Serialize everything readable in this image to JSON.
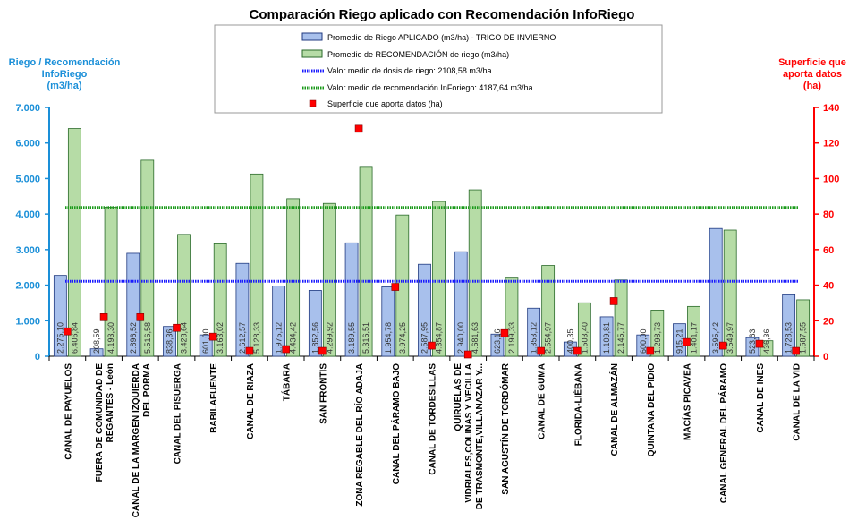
{
  "chart_data": {
    "type": "bar",
    "title": "Comparación Riego aplicado con Recomendación InfoRiego",
    "ylabel_left": [
      "Riego / Recomendación",
      "InfoRiego",
      "(m3/ha)"
    ],
    "ylabel_right": [
      "Superficie que",
      "aporta datos",
      "(ha)"
    ],
    "ylim_left": [
      0,
      7000
    ],
    "ylim_right": [
      0,
      140
    ],
    "yticks_left": [
      "0",
      "1.000",
      "2.000",
      "3.000",
      "4.000",
      "5.000",
      "6.000",
      "7.000"
    ],
    "yticks_right": [
      "0",
      "20",
      "40",
      "60",
      "80",
      "100",
      "120",
      "140"
    ],
    "categories": [
      [
        "CANAL DE PAYUELOS"
      ],
      [
        "FUERA DE COMUNIDAD DE",
        "REGANTES - León"
      ],
      [
        "CANAL DE LA MARGEN IZQUIERDA",
        "DEL PORMA"
      ],
      [
        "CANAL DEL PISUERGA"
      ],
      [
        "BABILAFUENTE"
      ],
      [
        "CANAL DE RIAZA"
      ],
      [
        "TÁBARA"
      ],
      [
        "SAN FRONTIS"
      ],
      [
        "ZONA REGABLE DEL RÍO ADAJA"
      ],
      [
        "CANAL DEL PÁRAMO BAJO"
      ],
      [
        "CANAL DE TORDESILLAS"
      ],
      [
        "QUIRUELAS DE",
        "VIDRIALES,COLINAS Y VECILLA",
        "DE TRASMONTE,VILLANAZAR Y..."
      ],
      [
        "SAN AGUSTÍN DE TORDÓMAR"
      ],
      [
        "CANAL DE GUMA"
      ],
      [
        "FLORIDA-LIÉBANA"
      ],
      [
        "CANAL DE ALMAZÁN"
      ],
      [
        "QUINTANA DEL PIDIO"
      ],
      [
        "MACÍAS PICAVEA"
      ],
      [
        "CANAL GENERAL DEL PÁRAMO"
      ],
      [
        "CANAL DE INES"
      ],
      [
        "CANAL DE LA VID"
      ]
    ],
    "series": [
      {
        "name": "Promedio de Riego APLICADO (m3/ha) - TRIGO DE INVIERNO",
        "color": "#a8c0ec",
        "values": [
          2275.1,
          208.59,
          2896.52,
          838.36,
          601.0,
          2612.57,
          1975.12,
          1852.56,
          3189.55,
          1954.78,
          2587.95,
          2940.0,
          623.16,
          1353.12,
          400.35,
          1109.81,
          600.0,
          915.21,
          3595.42,
          523.63,
          1728.53
        ],
        "labels": [
          "2.275,10",
          "208,59",
          "2.896,52",
          "838,36",
          "601,00",
          "2.612,57",
          "1.975,12",
          "1.852,56",
          "3.189,55",
          "1.954,78",
          "2.587,95",
          "2.940,00",
          "623,16",
          "1.353,12",
          "400,35",
          "1.109,81",
          "600,00",
          "915,21",
          "3.595,42",
          "523,63",
          "1.728,53"
        ]
      },
      {
        "name": "Promedio de RECOMENDACIÓN de riego (m3/ha)",
        "color": "#b6dca6",
        "values": [
          6406.84,
          4193.3,
          5516.58,
          3428.64,
          3163.02,
          5128.33,
          4434.42,
          4299.92,
          5316.51,
          3974.25,
          4354.87,
          4681.63,
          2199.33,
          2554.97,
          1503.4,
          2145.77,
          1298.73,
          1401.17,
          3549.97,
          436.36,
          1587.55
        ],
        "labels": [
          "6.406,84",
          "4.193,30",
          "5.516,58",
          "3.428,64",
          "3.163,02",
          "5.128,33",
          "4.434,42",
          "4.299,92",
          "5.316,51",
          "3.974,25",
          "4.354,87",
          "4.681,63",
          "2.199,33",
          "2.554,97",
          "1.503,40",
          "2.145,77",
          "1.298,73",
          "1.401,17",
          "3.549,97",
          "436,36",
          "1.587,55"
        ]
      },
      {
        "name": "Superficie que aporta datos (ha)",
        "color": "#ff0000",
        "values": [
          14,
          22,
          22,
          16,
          11,
          3,
          4,
          3,
          128,
          39,
          6,
          1,
          13,
          3,
          3,
          31,
          3,
          8,
          6,
          7,
          3
        ]
      }
    ],
    "hlines": [
      {
        "name": "Valor medio de dosis de riego: 2108,58 m3/ha",
        "value": 2108.58,
        "color": "#1a1aff"
      },
      {
        "name": "Valor medio de recomendación InForiego: 4187,64 m3/ha",
        "value": 4187.64,
        "color": "#1a9a1a"
      }
    ],
    "legend": "top-center",
    "grid": false,
    "colors": {
      "left_axis": "#1a8fd8",
      "right_axis": "#ff0000",
      "title": "#000000"
    }
  }
}
